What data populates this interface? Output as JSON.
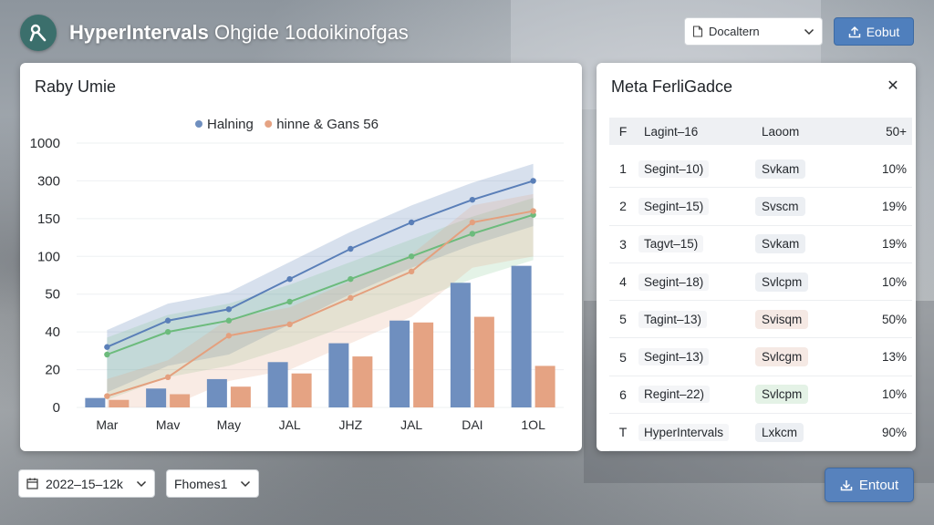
{
  "header": {
    "app_name": "HyperIntervals",
    "subtitle": "Ohgide 1odoikinofgas",
    "doc_select_label": "Docaltern",
    "export_label": "Eobut"
  },
  "chart_card": {
    "title": "Raby Umie"
  },
  "chart_data": {
    "type": "bar+line",
    "legend": [
      "Halning",
      "hinne & Gans 56"
    ],
    "legend_placement": "top-center",
    "y_tick_labels": [
      "0",
      "20",
      "40",
      "50",
      "100",
      "150",
      "300",
      "1000"
    ],
    "categories": [
      "Mar",
      "Mav",
      "May",
      "JAL",
      "JHZ",
      "JAL",
      "DAI",
      "1OL"
    ],
    "series": [
      {
        "name": "Halning",
        "kind": "bar",
        "color": "#6f8fbf",
        "values": [
          0.25,
          0.5,
          0.75,
          1.2,
          1.7,
          2.3,
          3.3,
          3.75
        ]
      },
      {
        "name": "hinne & Gans 56",
        "kind": "bar",
        "color": "#e5a383",
        "values": [
          0.2,
          0.35,
          0.55,
          0.9,
          1.35,
          2.25,
          2.4,
          1.1
        ]
      },
      {
        "kind": "line",
        "color": "#5a7fb8",
        "values": [
          1.6,
          2.3,
          2.6,
          3.4,
          4.2,
          4.9,
          5.5,
          6.0
        ]
      },
      {
        "kind": "line",
        "color": "#6cbb7c",
        "values": [
          1.4,
          2.0,
          2.3,
          2.8,
          3.4,
          4.0,
          4.6,
          5.1
        ]
      },
      {
        "kind": "line",
        "color": "#e4a07e",
        "values": [
          0.3,
          0.8,
          1.9,
          2.2,
          2.9,
          3.6,
          4.9,
          5.2
        ]
      }
    ],
    "ylim": [
      0,
      7
    ]
  },
  "meta_panel": {
    "title": "Meta FerliGadce",
    "header": {
      "idx": "F",
      "segment": "Lagint–16",
      "system": "Laoom",
      "pct": "50+"
    },
    "rows": [
      {
        "idx": "1",
        "segment": "Segint–10)",
        "system": "Svkam",
        "pct": "10%",
        "sys_color": "#eceff3"
      },
      {
        "idx": "2",
        "segment": "Segint–15)",
        "system": "Svscm",
        "pct": "19%",
        "sys_color": "#eceff3"
      },
      {
        "idx": "3",
        "segment": "Tagvt–15)",
        "system": "Svkam",
        "pct": "19%",
        "sys_color": "#eceff3"
      },
      {
        "idx": "4",
        "segment": "Segint–18)",
        "system": "Svlcpm",
        "pct": "10%",
        "sys_color": "#eceff3"
      },
      {
        "idx": "5",
        "segment": "Tagint–13)",
        "system": "Svisqm",
        "pct": "50%",
        "sys_color": "#f5e9e4"
      },
      {
        "idx": "5",
        "segment": "Segint–13)",
        "system": "Svlcgm",
        "pct": "13%",
        "sys_color": "#f5e9e4"
      },
      {
        "idx": "6",
        "segment": "Regint–22)",
        "system": "Svlcpm",
        "pct": "10%",
        "sys_color": "#e4f2e6"
      },
      {
        "idx": "T",
        "segment": "HyperIntervals",
        "system": "Lxkcm",
        "pct": "90%",
        "sys_color": "#eceff3"
      }
    ]
  },
  "footer": {
    "date_label": "2022–15–12k",
    "home_label": "Fhomes1",
    "export_label": "Entout"
  }
}
